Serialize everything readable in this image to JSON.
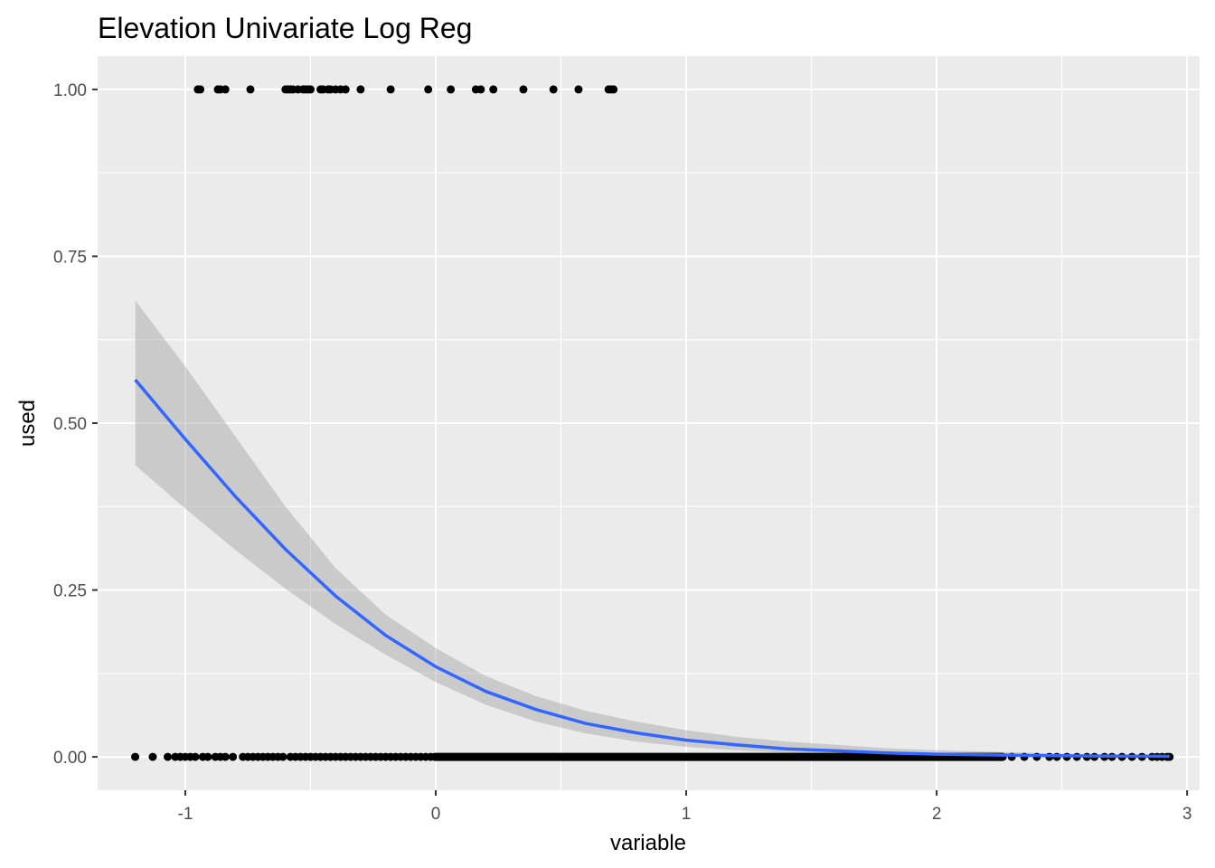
{
  "chart_data": {
    "type": "scatter",
    "title": "Elevation Univariate Log Reg",
    "xlabel": "variable",
    "ylabel": "used",
    "xlim": [
      -1.35,
      3.05
    ],
    "ylim": [
      -0.05,
      1.05
    ],
    "x_ticks": [
      -1,
      0,
      1,
      2,
      3
    ],
    "x_tick_labels": [
      "-1",
      "0",
      "1",
      "2",
      "3"
    ],
    "y_ticks": [
      0,
      0.25,
      0.5,
      0.75,
      1
    ],
    "y_tick_labels": [
      "0.00",
      "0.25",
      "0.50",
      "0.75",
      "1.00"
    ],
    "grid": true,
    "legend": "none",
    "colors": {
      "panel": "#ebebeb",
      "grid": "#ffffff",
      "points": "#000000",
      "fit_line": "#3366ff",
      "ribbon": "#999999"
    },
    "points_used_1": [
      -0.95,
      -0.94,
      -0.87,
      -0.86,
      -0.84,
      -0.74,
      -0.6,
      -0.59,
      -0.58,
      -0.57,
      -0.55,
      -0.53,
      -0.52,
      -0.51,
      -0.5,
      -0.46,
      -0.45,
      -0.43,
      -0.42,
      -0.4,
      -0.38,
      -0.36,
      -0.3,
      -0.18,
      -0.03,
      0.06,
      0.16,
      0.18,
      0.23,
      0.35,
      0.47,
      0.57,
      0.69,
      0.7,
      0.71
    ],
    "points_used_0": {
      "sparse": [
        -1.2,
        -1.13,
        -1.07,
        -1.04,
        -1.02,
        -1.0,
        -0.98,
        -0.96,
        -0.93,
        -0.91,
        -0.88,
        -0.86,
        -0.84,
        -0.81,
        -0.77,
        -0.75,
        -0.73,
        -0.71,
        -0.69,
        -0.67,
        -0.65,
        -0.63,
        -0.61,
        -0.58,
        -0.56,
        -0.54,
        -0.52,
        -0.5,
        -0.48,
        -0.46,
        -0.44,
        -0.42,
        -0.4,
        -0.38,
        -0.36,
        -0.34,
        -0.32,
        -0.3,
        -0.28,
        -0.26,
        -0.24,
        -0.22,
        -0.2,
        -0.18,
        -0.16,
        -0.14,
        -0.12,
        -0.1,
        -0.08,
        -0.06,
        -0.04,
        -0.02,
        2.3,
        2.35,
        2.4,
        2.45,
        2.48,
        2.52,
        2.56,
        2.6,
        2.63,
        2.67,
        2.7,
        2.74,
        2.78,
        2.82,
        2.86,
        2.88,
        2.9,
        2.92,
        2.93
      ],
      "dense_range": [
        -0.02,
        2.28
      ]
    },
    "fit": {
      "x": [
        -1.2,
        -1.0,
        -0.8,
        -0.6,
        -0.4,
        -0.2,
        0.0,
        0.2,
        0.4,
        0.6,
        0.8,
        1.0,
        1.2,
        1.4,
        1.6,
        1.8,
        2.0,
        2.2,
        2.4,
        2.6,
        2.8,
        2.93
      ],
      "y": [
        0.565,
        0.476,
        0.39,
        0.311,
        0.241,
        0.182,
        0.135,
        0.098,
        0.071,
        0.05,
        0.036,
        0.025,
        0.018,
        0.012,
        0.009,
        0.006,
        0.004,
        0.003,
        0.002,
        0.0014,
        0.001,
        0.0008
      ],
      "lower": [
        0.437,
        0.372,
        0.31,
        0.252,
        0.199,
        0.153,
        0.112,
        0.078,
        0.053,
        0.035,
        0.023,
        0.015,
        0.01,
        0.006,
        0.004,
        0.003,
        0.002,
        0.001,
        0.0006,
        0.0003,
        0.0002,
        0.0001
      ],
      "upper": [
        0.684,
        0.585,
        0.48,
        0.375,
        0.283,
        0.213,
        0.163,
        0.121,
        0.091,
        0.069,
        0.053,
        0.04,
        0.03,
        0.023,
        0.018,
        0.013,
        0.01,
        0.008,
        0.006,
        0.004,
        0.003,
        0.003
      ]
    }
  }
}
